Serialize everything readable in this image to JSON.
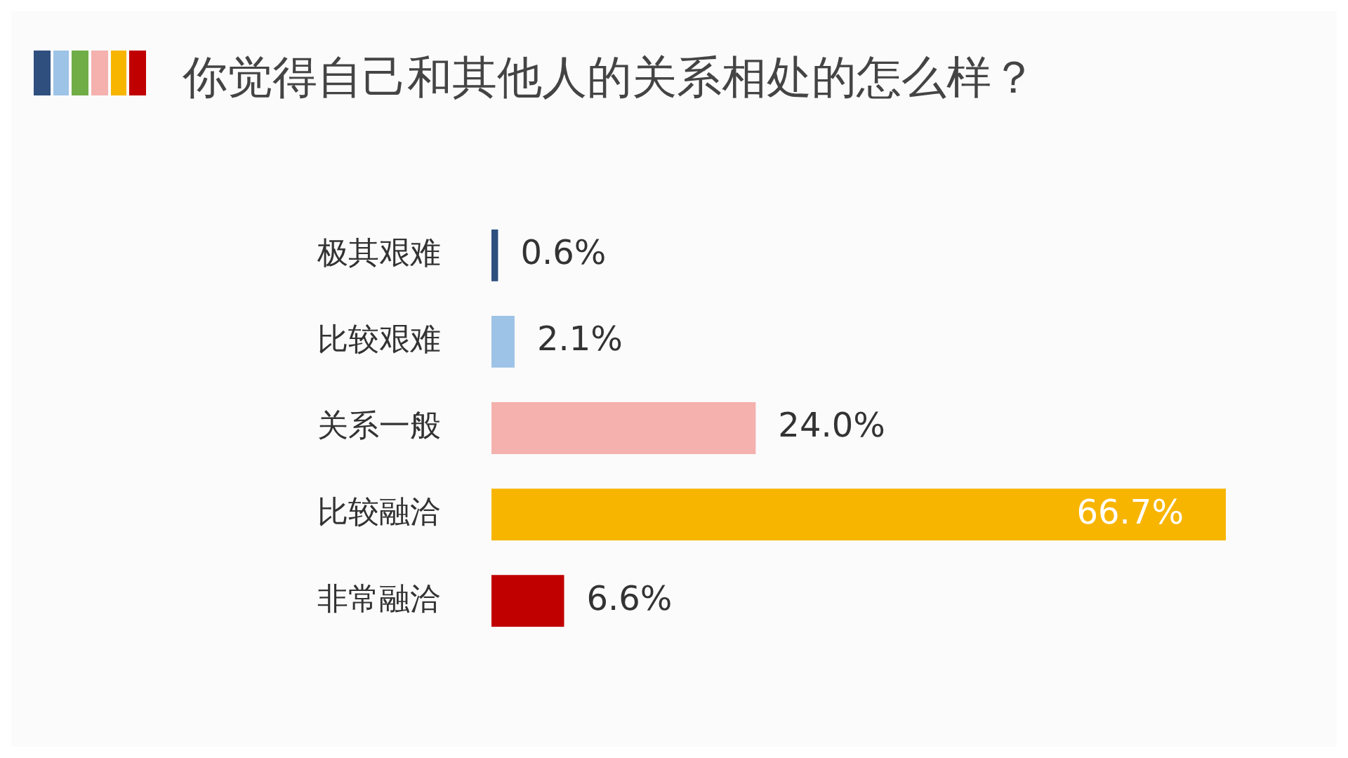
{
  "chart_data": {
    "type": "bar",
    "orientation": "horizontal",
    "title": "你觉得自己和其他人的关系相处的怎么样？",
    "categories": [
      "极其艰难",
      "比较艰难",
      "关系一般",
      "比较融洽",
      "非常融洽"
    ],
    "values": [
      0.6,
      2.1,
      24.0,
      66.7,
      6.6
    ],
    "colors": [
      "#2f4f7f",
      "#9dc3e6",
      "#f4b1ae",
      "#f7b500",
      "#c00000"
    ],
    "value_labels": [
      "0.6%",
      "2.1%",
      "24.0%",
      "66.7%",
      "6.6%"
    ],
    "xlim": [
      0,
      66.7
    ],
    "tick_labels": "y"
  }
}
